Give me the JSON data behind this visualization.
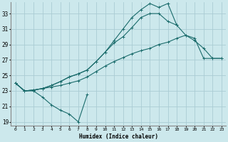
{
  "title": "",
  "xlabel": "Humidex (Indice chaleur)",
  "ylabel": "",
  "bg_color": "#cce8ec",
  "grid_color": "#aaccd4",
  "line_color": "#1a6b6b",
  "xlim": [
    -0.5,
    23.5
  ],
  "ylim": [
    18.5,
    34.5
  ],
  "xticks": [
    0,
    1,
    2,
    3,
    4,
    5,
    6,
    7,
    8,
    9,
    10,
    11,
    12,
    13,
    14,
    15,
    16,
    17,
    18,
    19,
    20,
    21,
    22,
    23
  ],
  "yticks": [
    19,
    21,
    23,
    25,
    27,
    29,
    31,
    33
  ],
  "series": [
    [
      24.0,
      23.0,
      23.0,
      22.2,
      21.2,
      20.5,
      20.0,
      19.0,
      22.5,
      null,
      null,
      null,
      null,
      null,
      null,
      null,
      null,
      null,
      null,
      null,
      null,
      null,
      null,
      null
    ],
    [
      24.0,
      23.0,
      23.1,
      23.3,
      23.5,
      23.7,
      24.0,
      24.3,
      24.8,
      25.5,
      26.2,
      26.8,
      27.3,
      27.8,
      28.2,
      28.5,
      29.0,
      29.3,
      29.8,
      30.2,
      29.8,
      27.2,
      27.2,
      27.2
    ],
    [
      24.0,
      23.0,
      23.1,
      23.3,
      23.7,
      24.2,
      24.8,
      25.2,
      25.7,
      26.8,
      28.0,
      29.2,
      30.0,
      31.2,
      32.5,
      33.0,
      33.0,
      32.0,
      31.5,
      30.2,
      29.5,
      28.5,
      27.2,
      27.2
    ],
    [
      24.0,
      23.0,
      23.1,
      23.3,
      23.7,
      24.2,
      24.8,
      25.2,
      25.7,
      26.8,
      28.0,
      29.5,
      31.0,
      32.5,
      33.5,
      34.3,
      33.8,
      34.3,
      31.5,
      null,
      null,
      null,
      null,
      null
    ]
  ]
}
